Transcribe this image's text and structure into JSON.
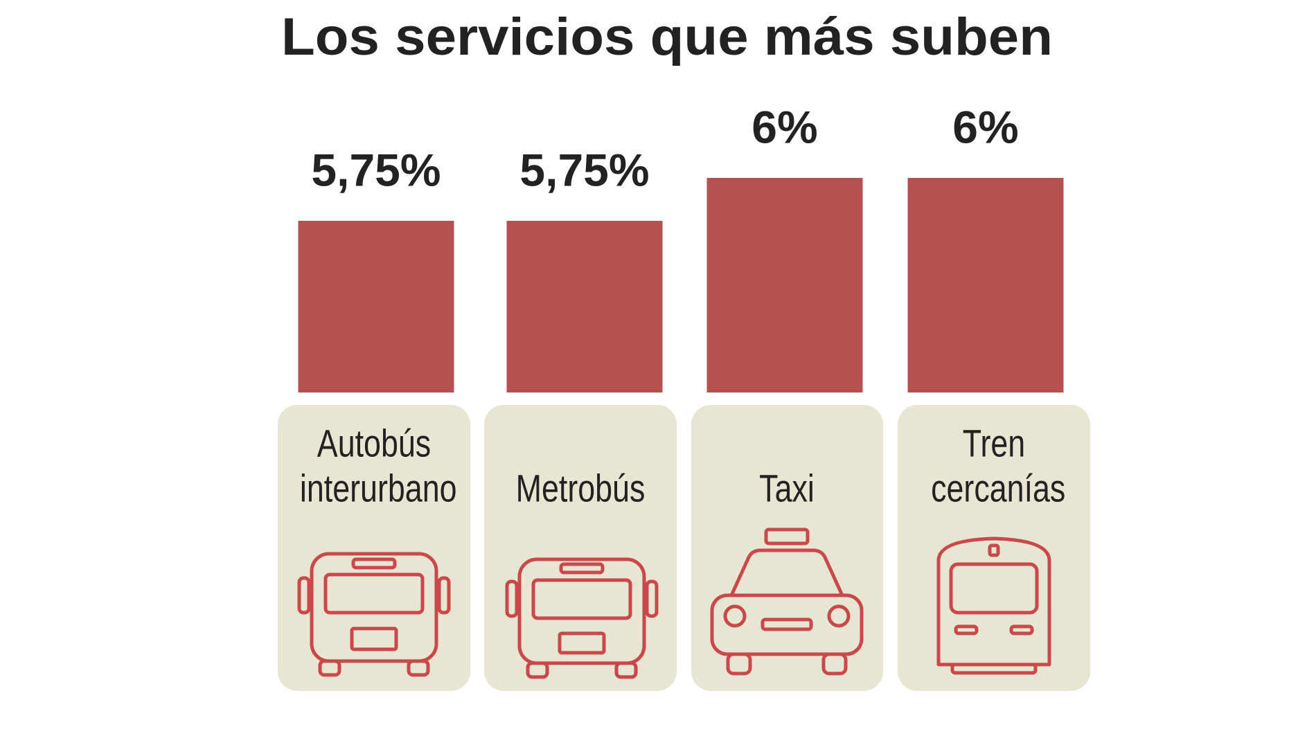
{
  "chart_data": {
    "type": "bar",
    "title": "Los servicios que más suben",
    "categories": [
      "Autobús interurbano",
      "Metrobús",
      "Taxi",
      "Tren cercanías"
    ],
    "values": [
      5.75,
      5.75,
      6,
      6
    ],
    "value_labels": [
      "5,75%",
      "5,75%",
      "6%",
      "6%"
    ],
    "color": "#b55151",
    "ylim": [
      4.75,
      6
    ]
  }
}
